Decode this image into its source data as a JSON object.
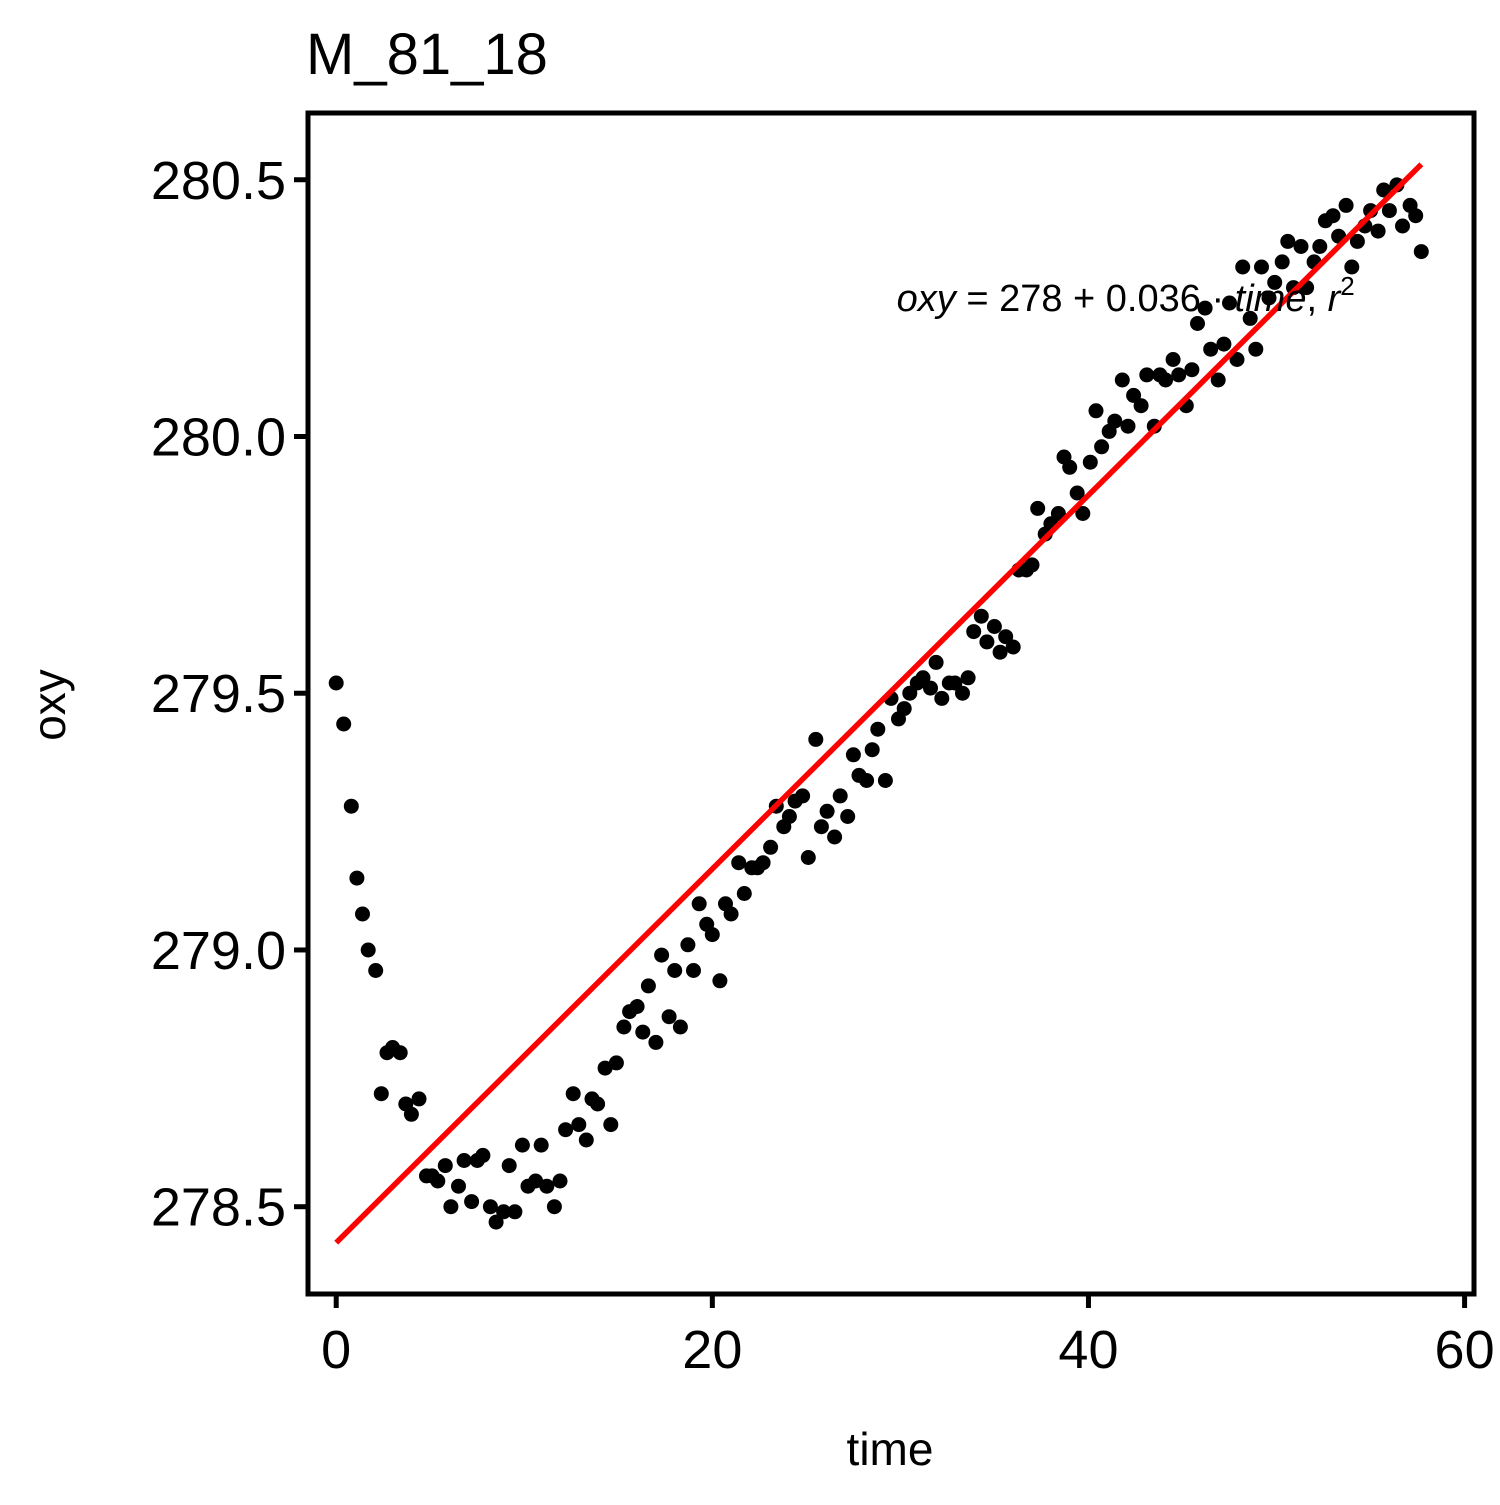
{
  "chart_data": {
    "type": "scatter",
    "title": "M_81_18",
    "xlabel": "time",
    "ylabel": "oxy",
    "xlim": [
      -1.5,
      60.5
    ],
    "ylim": [
      278.33,
      280.63
    ],
    "xticks": [
      0,
      20,
      40,
      60
    ],
    "xtick_labels": [
      "0",
      "20",
      "40",
      "60"
    ],
    "yticks": [
      278.5,
      279.0,
      279.5,
      280.0,
      280.5
    ],
    "ytick_labels": [
      "278.5",
      "279.0",
      "279.5",
      "280.0",
      "280.5"
    ],
    "grid": false,
    "point_color": "#000000",
    "points": [
      [
        0.0,
        279.52
      ],
      [
        0.4,
        279.44
      ],
      [
        0.8,
        279.28
      ],
      [
        1.1,
        279.14
      ],
      [
        1.4,
        279.07
      ],
      [
        1.7,
        279.0
      ],
      [
        2.1,
        278.96
      ],
      [
        2.4,
        278.72
      ],
      [
        2.7,
        278.8
      ],
      [
        3.0,
        278.81
      ],
      [
        3.4,
        278.8
      ],
      [
        3.7,
        278.7
      ],
      [
        4.0,
        278.68
      ],
      [
        4.4,
        278.71
      ],
      [
        4.8,
        278.56
      ],
      [
        5.1,
        278.56
      ],
      [
        5.4,
        278.55
      ],
      [
        5.8,
        278.58
      ],
      [
        6.1,
        278.5
      ],
      [
        6.5,
        278.54
      ],
      [
        6.8,
        278.59
      ],
      [
        7.2,
        278.51
      ],
      [
        7.5,
        278.59
      ],
      [
        7.8,
        278.6
      ],
      [
        8.2,
        278.5
      ],
      [
        8.5,
        278.47
      ],
      [
        8.9,
        278.49
      ],
      [
        9.2,
        278.58
      ],
      [
        9.5,
        278.49
      ],
      [
        9.9,
        278.62
      ],
      [
        10.2,
        278.54
      ],
      [
        10.6,
        278.55
      ],
      [
        10.9,
        278.62
      ],
      [
        11.2,
        278.54
      ],
      [
        11.6,
        278.5
      ],
      [
        11.9,
        278.55
      ],
      [
        12.2,
        278.65
      ],
      [
        12.6,
        278.72
      ],
      [
        12.9,
        278.66
      ],
      [
        13.3,
        278.63
      ],
      [
        13.6,
        278.71
      ],
      [
        13.9,
        278.7
      ],
      [
        14.3,
        278.77
      ],
      [
        14.6,
        278.66
      ],
      [
        14.9,
        278.78
      ],
      [
        15.3,
        278.85
      ],
      [
        15.6,
        278.88
      ],
      [
        16.0,
        278.89
      ],
      [
        16.3,
        278.84
      ],
      [
        16.6,
        278.93
      ],
      [
        17.0,
        278.82
      ],
      [
        17.3,
        278.99
      ],
      [
        17.7,
        278.87
      ],
      [
        18.0,
        278.96
      ],
      [
        18.3,
        278.85
      ],
      [
        18.7,
        279.01
      ],
      [
        19.0,
        278.96
      ],
      [
        19.3,
        279.09
      ],
      [
        19.7,
        279.05
      ],
      [
        20.0,
        279.03
      ],
      [
        20.4,
        278.94
      ],
      [
        20.7,
        279.09
      ],
      [
        21.0,
        279.07
      ],
      [
        21.4,
        279.17
      ],
      [
        21.7,
        279.11
      ],
      [
        22.1,
        279.16
      ],
      [
        22.4,
        279.16
      ],
      [
        22.7,
        279.17
      ],
      [
        23.1,
        279.2
      ],
      [
        23.4,
        279.28
      ],
      [
        23.8,
        279.24
      ],
      [
        24.1,
        279.26
      ],
      [
        24.4,
        279.29
      ],
      [
        24.8,
        279.3
      ],
      [
        25.1,
        279.18
      ],
      [
        25.5,
        279.41
      ],
      [
        25.8,
        279.24
      ],
      [
        26.1,
        279.27
      ],
      [
        26.5,
        279.22
      ],
      [
        26.8,
        279.3
      ],
      [
        27.2,
        279.26
      ],
      [
        27.5,
        279.38
      ],
      [
        27.8,
        279.34
      ],
      [
        28.2,
        279.33
      ],
      [
        28.5,
        279.39
      ],
      [
        28.8,
        279.43
      ],
      [
        29.2,
        279.33
      ],
      [
        29.5,
        279.49
      ],
      [
        29.9,
        279.45
      ],
      [
        30.2,
        279.47
      ],
      [
        30.5,
        279.5
      ],
      [
        30.9,
        279.52
      ],
      [
        31.2,
        279.53
      ],
      [
        31.6,
        279.51
      ],
      [
        31.9,
        279.56
      ],
      [
        32.2,
        279.49
      ],
      [
        32.6,
        279.52
      ],
      [
        32.9,
        279.52
      ],
      [
        33.3,
        279.5
      ],
      [
        33.6,
        279.53
      ],
      [
        33.9,
        279.62
      ],
      [
        34.3,
        279.65
      ],
      [
        34.6,
        279.6
      ],
      [
        35.0,
        279.63
      ],
      [
        35.3,
        279.58
      ],
      [
        35.6,
        279.61
      ],
      [
        36.0,
        279.59
      ],
      [
        36.3,
        279.74
      ],
      [
        36.7,
        279.74
      ],
      [
        37.0,
        279.75
      ],
      [
        37.3,
        279.86
      ],
      [
        37.7,
        279.81
      ],
      [
        38.0,
        279.83
      ],
      [
        38.4,
        279.85
      ],
      [
        38.7,
        279.96
      ],
      [
        39.0,
        279.94
      ],
      [
        39.4,
        279.89
      ],
      [
        39.7,
        279.85
      ],
      [
        40.1,
        279.95
      ],
      [
        40.4,
        280.05
      ],
      [
        40.7,
        279.98
      ],
      [
        41.1,
        280.01
      ],
      [
        41.4,
        280.03
      ],
      [
        41.8,
        280.11
      ],
      [
        42.1,
        280.02
      ],
      [
        42.4,
        280.08
      ],
      [
        42.8,
        280.06
      ],
      [
        43.1,
        280.12
      ],
      [
        43.5,
        280.02
      ],
      [
        43.8,
        280.12
      ],
      [
        44.1,
        280.11
      ],
      [
        44.5,
        280.15
      ],
      [
        44.8,
        280.12
      ],
      [
        45.2,
        280.06
      ],
      [
        45.5,
        280.13
      ],
      [
        45.8,
        280.22
      ],
      [
        46.2,
        280.25
      ],
      [
        46.5,
        280.17
      ],
      [
        46.9,
        280.11
      ],
      [
        47.2,
        280.18
      ],
      [
        47.5,
        280.26
      ],
      [
        47.9,
        280.15
      ],
      [
        48.2,
        280.33
      ],
      [
        48.6,
        280.23
      ],
      [
        48.9,
        280.17
      ],
      [
        49.2,
        280.33
      ],
      [
        49.6,
        280.27
      ],
      [
        49.9,
        280.3
      ],
      [
        50.3,
        280.34
      ],
      [
        50.6,
        280.38
      ],
      [
        50.9,
        280.29
      ],
      [
        51.3,
        280.37
      ],
      [
        51.6,
        280.29
      ],
      [
        52.0,
        280.34
      ],
      [
        52.3,
        280.37
      ],
      [
        52.6,
        280.42
      ],
      [
        53.0,
        280.43
      ],
      [
        53.3,
        280.39
      ],
      [
        53.7,
        280.45
      ],
      [
        54.0,
        280.33
      ],
      [
        54.3,
        280.38
      ],
      [
        54.7,
        280.41
      ],
      [
        55.0,
        280.44
      ],
      [
        55.4,
        280.4
      ],
      [
        55.7,
        280.48
      ],
      [
        56.0,
        280.44
      ],
      [
        56.4,
        280.49
      ],
      [
        56.7,
        280.41
      ],
      [
        57.1,
        280.45
      ],
      [
        57.4,
        280.43
      ],
      [
        57.7,
        280.36
      ]
    ],
    "fit_line": {
      "color": "#ff0000",
      "x": [
        0,
        57.7
      ],
      "y": [
        278.43,
        280.53
      ]
    },
    "annotation": {
      "parts": [
        {
          "text": "oxy",
          "style": "italic"
        },
        {
          "text": " = 278 + 0.036 · ",
          "style": "normal"
        },
        {
          "text": "time",
          "style": "italic"
        },
        {
          "text": ",  ",
          "style": "normal"
        },
        {
          "text": "r",
          "style": "italic"
        }
      ],
      "superscript": "2",
      "x": 29.8,
      "y": 280.27
    }
  }
}
